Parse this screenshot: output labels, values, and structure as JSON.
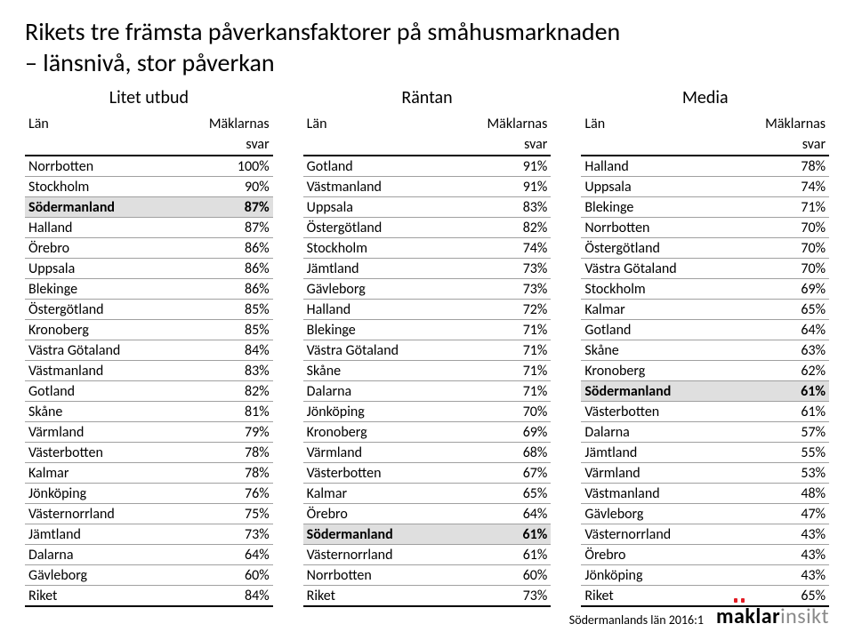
{
  "title_line1": "Rikets tre främsta påverkansfaktorer på småhusmarknaden",
  "title_line2": "– länsnivå, stor påverkan",
  "headers": {
    "col1": "Län",
    "col2a": "Mäklarnas",
    "col2b": "svar"
  },
  "highlight_label": "Södermanland",
  "columns": [
    {
      "title": "Litet utbud",
      "rows": [
        [
          "Norrbotten",
          "100%"
        ],
        [
          "Stockholm",
          "90%"
        ],
        [
          "Södermanland",
          "87%"
        ],
        [
          "Halland",
          "87%"
        ],
        [
          "Örebro",
          "86%"
        ],
        [
          "Uppsala",
          "86%"
        ],
        [
          "Blekinge",
          "86%"
        ],
        [
          "Östergötland",
          "85%"
        ],
        [
          "Kronoberg",
          "85%"
        ],
        [
          "Västra Götaland",
          "84%"
        ],
        [
          "Västmanland",
          "83%"
        ],
        [
          "Gotland",
          "82%"
        ],
        [
          "Skåne",
          "81%"
        ],
        [
          "Värmland",
          "79%"
        ],
        [
          "Västerbotten",
          "78%"
        ],
        [
          "Kalmar",
          "78%"
        ],
        [
          "Jönköping",
          "76%"
        ],
        [
          "Västernorrland",
          "75%"
        ],
        [
          "Jämtland",
          "73%"
        ],
        [
          "Dalarna",
          "64%"
        ],
        [
          "Gävleborg",
          "60%"
        ],
        [
          "Riket",
          "84%"
        ]
      ]
    },
    {
      "title": "Räntan",
      "rows": [
        [
          "Gotland",
          "91%"
        ],
        [
          "Västmanland",
          "91%"
        ],
        [
          "Uppsala",
          "83%"
        ],
        [
          "Östergötland",
          "82%"
        ],
        [
          "Stockholm",
          "74%"
        ],
        [
          "Jämtland",
          "73%"
        ],
        [
          "Gävleborg",
          "73%"
        ],
        [
          "Halland",
          "72%"
        ],
        [
          "Blekinge",
          "71%"
        ],
        [
          "Västra Götaland",
          "71%"
        ],
        [
          "Skåne",
          "71%"
        ],
        [
          "Dalarna",
          "71%"
        ],
        [
          "Jönköping",
          "70%"
        ],
        [
          "Kronoberg",
          "69%"
        ],
        [
          "Värmland",
          "68%"
        ],
        [
          "Västerbotten",
          "67%"
        ],
        [
          "Kalmar",
          "65%"
        ],
        [
          "Örebro",
          "64%"
        ],
        [
          "Södermanland",
          "61%"
        ],
        [
          "Västernorrland",
          "61%"
        ],
        [
          "Norrbotten",
          "60%"
        ],
        [
          "Riket",
          "73%"
        ]
      ]
    },
    {
      "title": "Media",
      "rows": [
        [
          "Halland",
          "78%"
        ],
        [
          "Uppsala",
          "74%"
        ],
        [
          "Blekinge",
          "71%"
        ],
        [
          "Norrbotten",
          "70%"
        ],
        [
          "Östergötland",
          "70%"
        ],
        [
          "Västra Götaland",
          "70%"
        ],
        [
          "Stockholm",
          "69%"
        ],
        [
          "Kalmar",
          "65%"
        ],
        [
          "Gotland",
          "64%"
        ],
        [
          "Skåne",
          "63%"
        ],
        [
          "Kronoberg",
          "62%"
        ],
        [
          "Södermanland",
          "61%"
        ],
        [
          "Västerbotten",
          "61%"
        ],
        [
          "Dalarna",
          "57%"
        ],
        [
          "Jämtland",
          "55%"
        ],
        [
          "Värmland",
          "53%"
        ],
        [
          "Västmanland",
          "48%"
        ],
        [
          "Gävleborg",
          "47%"
        ],
        [
          "Västernorrland",
          "43%"
        ],
        [
          "Örebro",
          "43%"
        ],
        [
          "Jönköping",
          "43%"
        ],
        [
          "Riket",
          "65%"
        ]
      ]
    }
  ],
  "footnote": "Södermanlands län 2016:1",
  "logo": {
    "part1": "maklar",
    "part2": "insikt"
  }
}
